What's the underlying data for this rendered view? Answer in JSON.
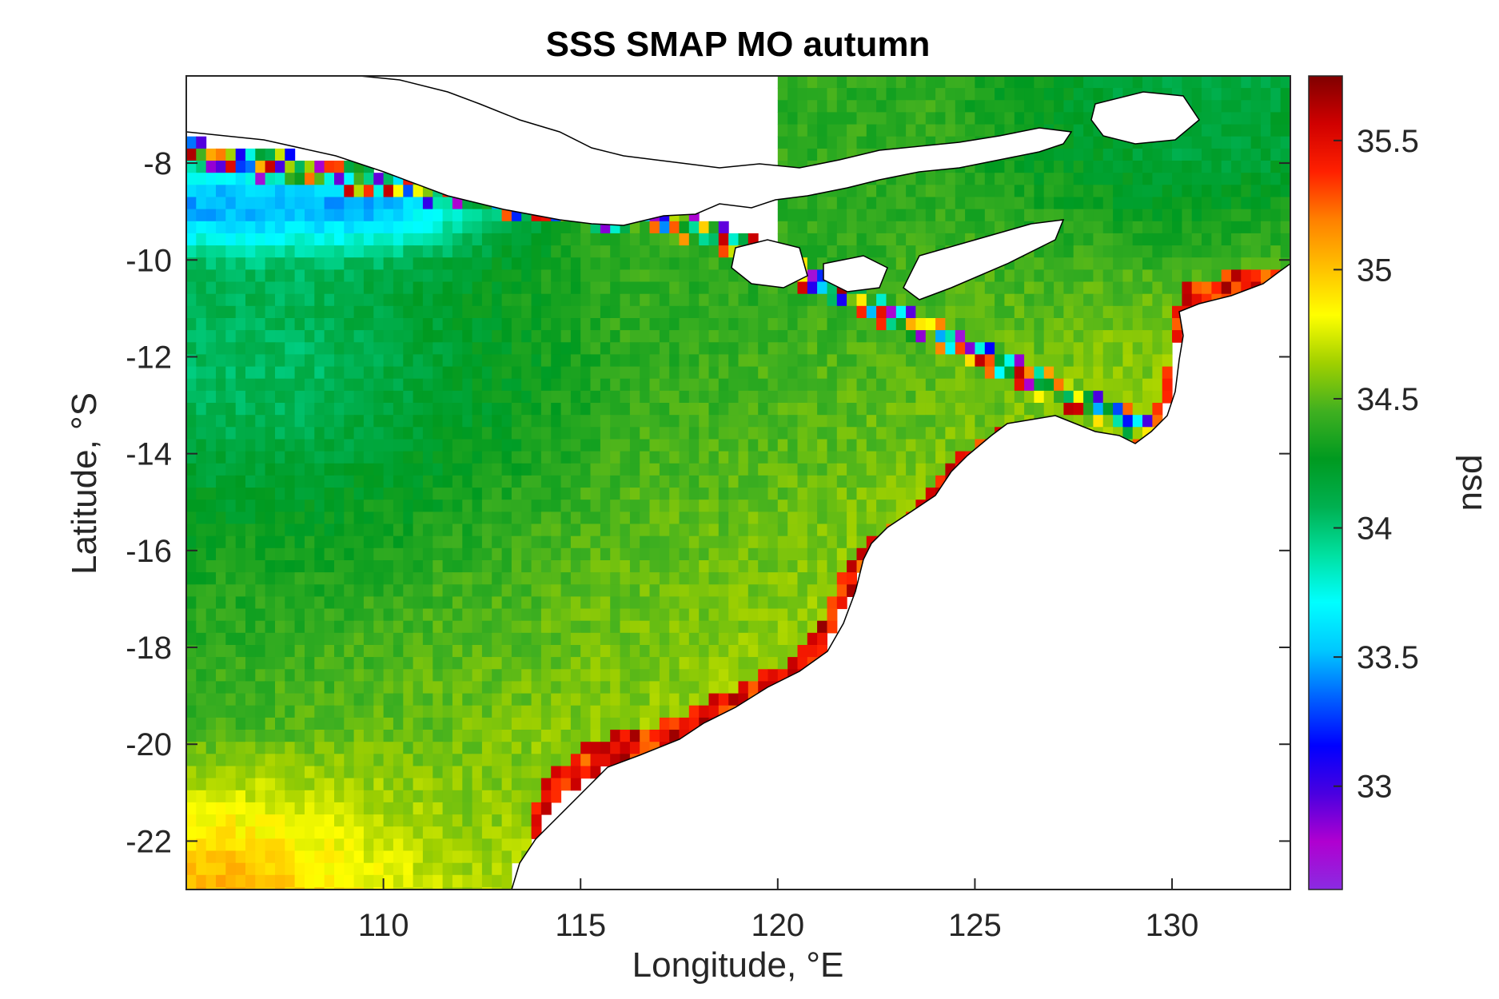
{
  "title": "SSS SMAP MO autumn",
  "xlabel": "Longitude, °E",
  "ylabel": "Latitude, °S",
  "colorbar": {
    "label": "psu",
    "range": [
      32.6,
      35.75
    ],
    "ticks": [
      "33",
      "33.5",
      "34",
      "34.5",
      "35",
      "35.5"
    ],
    "colormap": [
      "#8a2be2",
      "#b000d0",
      "#4a00e0",
      "#0000ff",
      "#0060ff",
      "#00c8ff",
      "#00ffff",
      "#00e0a0",
      "#00b050",
      "#009a20",
      "#40b020",
      "#a0d000",
      "#ffff00",
      "#ffc000",
      "#ff8000",
      "#ff2000",
      "#d00000",
      "#800000"
    ]
  },
  "chart_data": {
    "type": "heatmap",
    "title": "SSS SMAP MO autumn",
    "xlabel": "Longitude, °E",
    "ylabel": "Latitude, °S",
    "xlim": [
      105,
      133
    ],
    "ylim": [
      -23,
      -6.2
    ],
    "x_ticks": [
      "110",
      "115",
      "120",
      "125",
      "130"
    ],
    "y_ticks": [
      "-8",
      "-10",
      "-12",
      "-14",
      "-16",
      "-18",
      "-20",
      "-22"
    ],
    "colorbar_label": "psu",
    "value_range": [
      32.6,
      35.75
    ],
    "features": {
      "low_salinity_band_south_of_java": 33.6,
      "central_basin": 34.4,
      "southwest_corner": 34.9,
      "australian_coastal_strip": 35.4
    }
  }
}
